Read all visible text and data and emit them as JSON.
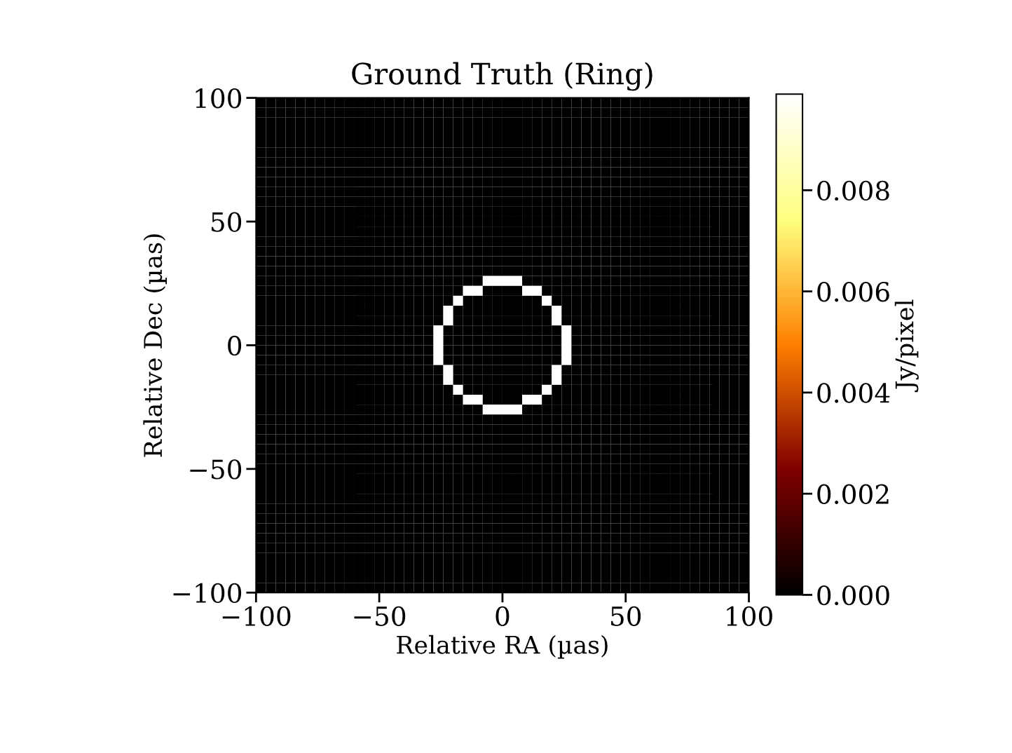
{
  "chart_data": {
    "type": "heatmap",
    "title": "Ground Truth (Ring)",
    "xlabel": "Relative RA (µas)",
    "ylabel": "Relative Dec (µas)",
    "clabel": "Jy/pixel",
    "xlim": [
      -100,
      100
    ],
    "ylim": [
      -100,
      100
    ],
    "xticks": [
      {
        "value": -100,
        "label": "−100"
      },
      {
        "value": -50,
        "label": "−50"
      },
      0,
      50,
      100
    ],
    "yticks": [
      {
        "value": -100,
        "label": "−100"
      },
      {
        "value": -50,
        "label": "−50"
      },
      0,
      50,
      100
    ],
    "clim": [
      0,
      0.0099
    ],
    "cticks": [
      {
        "value": 0,
        "label": "0.000"
      },
      {
        "value": 0.002,
        "label": "0.002"
      },
      {
        "value": 0.004,
        "label": "0.004"
      },
      {
        "value": 0.006,
        "label": "0.006"
      },
      {
        "value": 0.008,
        "label": "0.008"
      }
    ],
    "cells": [
      [
        0,
        0,
        0,
        0,
        0,
        0,
        0,
        0,
        0,
        0,
        0,
        0,
        0,
        0,
        0,
        0,
        0,
        0,
        0,
        0,
        0,
        0,
        0,
        0,
        0,
        0,
        0,
        0,
        0,
        0,
        0,
        0,
        0,
        0,
        0,
        0,
        0,
        0,
        0,
        0,
        0,
        0,
        0,
        0,
        0,
        0,
        0,
        0,
        0,
        0
      ],
      [
        0,
        0,
        0,
        0,
        0,
        0,
        0,
        0,
        0,
        0,
        0,
        0,
        0,
        0,
        0,
        0,
        0,
        0,
        0,
        0,
        0,
        0,
        0,
        0,
        0,
        0,
        0,
        0,
        0,
        0,
        0,
        0,
        0,
        0,
        0,
        0,
        0,
        0,
        0,
        0,
        0,
        0,
        0,
        0,
        0,
        0,
        0,
        0,
        0,
        0
      ],
      [
        0,
        0,
        0,
        0,
        0,
        0,
        0,
        0,
        0,
        0,
        0,
        0,
        0,
        0,
        0,
        0,
        0,
        0,
        0,
        0,
        0,
        0,
        0,
        0,
        0,
        0,
        0,
        0,
        0,
        0,
        0,
        0,
        0,
        0,
        0,
        0,
        0,
        0,
        0,
        0,
        0,
        0,
        0,
        0,
        0,
        0,
        0,
        0,
        0,
        0
      ],
      [
        0,
        0,
        0,
        0,
        0,
        0,
        0,
        0,
        0,
        0,
        0,
        0,
        0,
        0,
        0,
        0,
        0,
        0,
        0,
        0,
        0,
        0,
        0,
        0,
        0,
        0,
        0,
        0,
        0,
        0,
        0,
        0,
        0,
        0,
        0,
        0,
        0,
        0,
        0,
        0,
        0,
        0,
        0,
        0,
        0,
        0,
        0,
        0,
        0,
        0
      ],
      [
        0,
        0,
        0,
        0,
        0,
        0,
        0,
        0,
        0,
        0,
        0,
        0,
        0,
        0,
        0,
        0,
        0,
        0,
        0,
        0,
        0,
        0,
        0,
        0,
        0,
        0,
        0,
        0,
        0,
        0,
        0,
        0,
        0,
        0,
        0,
        0,
        0,
        0,
        0,
        0,
        0,
        0,
        0,
        0,
        0,
        0,
        0,
        0,
        0,
        0
      ],
      [
        0,
        0,
        0,
        0,
        0,
        0,
        0,
        0,
        0,
        0,
        0,
        0,
        0,
        0,
        0,
        0,
        0,
        0,
        0,
        0,
        0,
        0,
        0,
        0,
        0,
        0,
        0,
        0,
        0,
        0,
        0,
        0,
        0,
        0,
        0,
        0,
        0,
        0,
        0,
        0,
        0,
        0,
        0,
        0,
        0,
        0,
        0,
        0,
        0,
        0
      ],
      [
        0,
        0,
        0,
        0,
        0,
        0,
        0,
        0,
        0,
        0,
        0,
        0,
        0,
        0,
        0,
        0,
        0,
        0,
        0,
        0,
        0,
        0,
        0,
        0,
        0,
        0,
        0,
        0,
        0,
        0,
        0,
        0,
        0,
        0,
        0,
        0,
        0,
        0,
        0,
        0,
        0,
        0,
        0,
        0,
        0,
        0,
        0,
        0,
        0,
        0
      ],
      [
        0,
        0,
        0,
        0,
        0,
        0,
        0,
        0,
        0,
        0,
        0,
        0,
        0,
        0,
        0,
        0,
        0,
        0,
        0,
        0,
        0,
        0,
        0,
        0,
        0,
        0,
        0,
        0,
        0,
        0,
        0,
        0,
        0,
        0,
        0,
        0,
        0,
        0,
        0,
        0,
        0,
        0,
        0,
        0,
        0,
        0,
        0,
        0,
        0,
        0
      ],
      [
        0,
        0,
        0,
        0,
        0,
        0,
        0,
        0,
        0,
        0,
        0,
        0,
        0,
        0,
        0,
        0,
        0,
        0,
        0,
        0,
        0,
        0,
        0,
        0,
        0,
        0,
        0,
        0,
        0,
        0,
        0,
        0,
        0,
        0,
        0,
        0,
        0,
        0,
        0,
        0,
        0,
        0,
        0,
        0,
        0,
        0,
        0,
        0,
        0,
        0
      ],
      [
        0,
        0,
        0,
        0,
        0,
        0,
        0,
        0,
        0,
        0,
        0,
        0,
        0,
        0,
        0,
        0,
        0,
        0,
        0,
        0,
        0,
        0,
        0,
        0,
        0,
        0,
        0,
        0,
        0,
        0,
        0,
        0,
        0,
        0,
        0,
        0,
        0,
        0,
        0,
        0,
        0,
        0,
        0,
        0,
        0,
        0,
        0,
        0,
        0,
        0
      ],
      [
        0,
        0,
        0,
        0,
        0,
        0,
        0,
        0,
        0,
        0,
        0,
        0,
        0,
        0,
        0,
        0,
        0,
        0,
        0,
        0,
        0,
        0,
        0,
        0,
        0,
        0,
        0,
        0,
        0,
        0,
        0,
        0,
        0,
        0,
        0,
        0,
        0,
        0,
        0,
        0,
        0,
        0,
        0,
        0,
        0,
        0,
        0,
        0,
        0,
        0
      ],
      [
        0,
        0,
        0,
        0,
        0,
        0,
        0,
        0,
        0,
        0,
        0,
        0,
        0,
        0,
        0,
        0,
        0,
        0,
        0,
        0,
        0,
        0,
        0,
        0,
        0,
        0,
        0,
        0,
        0,
        0,
        0,
        0,
        0,
        0,
        0,
        0,
        0,
        0,
        0,
        0,
        0,
        0,
        0,
        0,
        0,
        0,
        0,
        0,
        0,
        0
      ],
      [
        0,
        0,
        0,
        0,
        0,
        0,
        0,
        0,
        0,
        0,
        0,
        0,
        0,
        0,
        0,
        0,
        0,
        0,
        0,
        0,
        0,
        0,
        0,
        0,
        0,
        0,
        0,
        0,
        0,
        0,
        0,
        0,
        0,
        0,
        0,
        0,
        0,
        0,
        0,
        0,
        0,
        0,
        0,
        0,
        0,
        0,
        0,
        0,
        0,
        0
      ],
      [
        0,
        0,
        0,
        0,
        0,
        0,
        0,
        0,
        0,
        0,
        0,
        0,
        0,
        0,
        0,
        0,
        0,
        0,
        0,
        0,
        0,
        0,
        0,
        0,
        0,
        0,
        0,
        0,
        0,
        0,
        0,
        0,
        0,
        0,
        0,
        0,
        0,
        0,
        0,
        0,
        0,
        0,
        0,
        0,
        0,
        0,
        0,
        0,
        0,
        0
      ],
      [
        0,
        0,
        0,
        0,
        0,
        0,
        0,
        0,
        0,
        0,
        0,
        0,
        0,
        0,
        0,
        0,
        0,
        0,
        0,
        0,
        0,
        0,
        0,
        0,
        0,
        0,
        0,
        0,
        0,
        0,
        0,
        0,
        0,
        0,
        0,
        0,
        0,
        0,
        0,
        0,
        0,
        0,
        0,
        0,
        0,
        0,
        0,
        0,
        0,
        0
      ],
      [
        0,
        0,
        0,
        0,
        0,
        0,
        0,
        0,
        0,
        0,
        0,
        0,
        0,
        0,
        0,
        0,
        0,
        0,
        0,
        0,
        0,
        0,
        0,
        0,
        0,
        0,
        0,
        0,
        0,
        0,
        0,
        0,
        0,
        0,
        0,
        0,
        0,
        0,
        0,
        0,
        0,
        0,
        0,
        0,
        0,
        0,
        0,
        0,
        0,
        0
      ],
      [
        0,
        0,
        0,
        0,
        0,
        0,
        0,
        0,
        0,
        0,
        0,
        0,
        0,
        0,
        0,
        0,
        0,
        0,
        0,
        0,
        0,
        0,
        0,
        0,
        0,
        0,
        0,
        0,
        0,
        0,
        0,
        0,
        0,
        0,
        0,
        0,
        0,
        0,
        0,
        0,
        0,
        0,
        0,
        0,
        0,
        0,
        0,
        0,
        0,
        0
      ],
      [
        0,
        0,
        0,
        0,
        0,
        0,
        0,
        0,
        0,
        0,
        0,
        0,
        0,
        0,
        0,
        0,
        0,
        0,
        0,
        0,
        0,
        0,
        0,
        0,
        0,
        0,
        0,
        0,
        0,
        0,
        0,
        0,
        0,
        0,
        0,
        0,
        0,
        0,
        0,
        0,
        0,
        0,
        0,
        0,
        0,
        0,
        0,
        0,
        0,
        0
      ],
      [
        0,
        0,
        0,
        0,
        0,
        0,
        0,
        0,
        0,
        0,
        0,
        0,
        0,
        0,
        0,
        0,
        0,
        0,
        0,
        0,
        0,
        0,
        0,
        0.0099,
        0.0099,
        0.0099,
        0.0099,
        0,
        0,
        0,
        0,
        0,
        0,
        0,
        0,
        0,
        0,
        0,
        0,
        0,
        0,
        0,
        0,
        0,
        0,
        0,
        0,
        0,
        0,
        0
      ],
      [
        0,
        0,
        0,
        0,
        0,
        0,
        0,
        0,
        0,
        0,
        0,
        0,
        0,
        0,
        0,
        0,
        0,
        0,
        0,
        0,
        0,
        0.0099,
        0.0099,
        0,
        0,
        0,
        0,
        0.0099,
        0.0099,
        0,
        0,
        0,
        0,
        0,
        0,
        0,
        0,
        0,
        0,
        0,
        0,
        0,
        0,
        0,
        0,
        0,
        0,
        0,
        0,
        0
      ],
      [
        0,
        0,
        0,
        0,
        0,
        0,
        0,
        0,
        0,
        0,
        0,
        0,
        0,
        0,
        0,
        0,
        0,
        0,
        0,
        0,
        0.0099,
        0,
        0,
        0,
        0,
        0,
        0,
        0,
        0,
        0.0099,
        0,
        0,
        0,
        0,
        0,
        0,
        0,
        0,
        0,
        0,
        0,
        0,
        0,
        0,
        0,
        0,
        0,
        0,
        0,
        0
      ],
      [
        0,
        0,
        0,
        0,
        0,
        0,
        0,
        0,
        0,
        0,
        0,
        0,
        0,
        0,
        0,
        0,
        0,
        0,
        0,
        0.0099,
        0,
        0,
        0,
        0,
        0,
        0,
        0,
        0,
        0,
        0,
        0.0099,
        0,
        0,
        0,
        0,
        0,
        0,
        0,
        0,
        0,
        0,
        0,
        0,
        0,
        0,
        0,
        0,
        0,
        0,
        0
      ],
      [
        0,
        0,
        0,
        0,
        0,
        0,
        0,
        0,
        0,
        0,
        0,
        0,
        0,
        0,
        0,
        0,
        0,
        0,
        0,
        0.0099,
        0,
        0,
        0,
        0,
        0,
        0,
        0,
        0,
        0,
        0,
        0.0099,
        0,
        0,
        0,
        0,
        0,
        0,
        0,
        0,
        0,
        0,
        0,
        0,
        0,
        0,
        0,
        0,
        0,
        0,
        0
      ],
      [
        0,
        0,
        0,
        0,
        0,
        0,
        0,
        0,
        0,
        0,
        0,
        0,
        0,
        0,
        0,
        0,
        0,
        0,
        0.0099,
        0,
        0,
        0,
        0,
        0,
        0,
        0,
        0,
        0,
        0,
        0,
        0,
        0.0099,
        0,
        0,
        0,
        0,
        0,
        0,
        0,
        0,
        0,
        0,
        0,
        0,
        0,
        0,
        0,
        0,
        0,
        0
      ],
      [
        0,
        0,
        0,
        0,
        0,
        0,
        0,
        0,
        0,
        0,
        0,
        0,
        0,
        0,
        0,
        0,
        0,
        0,
        0.0099,
        0,
        0,
        0,
        0,
        0,
        0,
        0,
        0,
        0,
        0,
        0,
        0,
        0.0099,
        0,
        0,
        0,
        0,
        0,
        0,
        0,
        0,
        0,
        0,
        0,
        0,
        0,
        0,
        0,
        0,
        0,
        0
      ],
      [
        0,
        0,
        0,
        0,
        0,
        0,
        0,
        0,
        0,
        0,
        0,
        0,
        0,
        0,
        0,
        0,
        0,
        0,
        0.0099,
        0,
        0,
        0,
        0,
        0,
        0,
        0,
        0,
        0,
        0,
        0,
        0,
        0.0099,
        0,
        0,
        0,
        0,
        0,
        0,
        0,
        0,
        0,
        0,
        0,
        0,
        0,
        0,
        0,
        0,
        0,
        0
      ],
      [
        0,
        0,
        0,
        0,
        0,
        0,
        0,
        0,
        0,
        0,
        0,
        0,
        0,
        0,
        0,
        0,
        0,
        0,
        0.0099,
        0,
        0,
        0,
        0,
        0,
        0,
        0,
        0,
        0,
        0,
        0,
        0,
        0.0099,
        0,
        0,
        0,
        0,
        0,
        0,
        0,
        0,
        0,
        0,
        0,
        0,
        0,
        0,
        0,
        0,
        0,
        0
      ],
      [
        0,
        0,
        0,
        0,
        0,
        0,
        0,
        0,
        0,
        0,
        0,
        0,
        0,
        0,
        0,
        0,
        0,
        0,
        0,
        0.0099,
        0,
        0,
        0,
        0,
        0,
        0,
        0,
        0,
        0,
        0,
        0.0099,
        0,
        0,
        0,
        0,
        0,
        0,
        0,
        0,
        0,
        0,
        0,
        0,
        0,
        0,
        0,
        0,
        0,
        0,
        0
      ],
      [
        0,
        0,
        0,
        0,
        0,
        0,
        0,
        0,
        0,
        0,
        0,
        0,
        0,
        0,
        0,
        0,
        0,
        0,
        0,
        0.0099,
        0,
        0,
        0,
        0,
        0,
        0,
        0,
        0,
        0,
        0,
        0.0099,
        0,
        0,
        0,
        0,
        0,
        0,
        0,
        0,
        0,
        0,
        0,
        0,
        0,
        0,
        0,
        0,
        0,
        0,
        0
      ],
      [
        0,
        0,
        0,
        0,
        0,
        0,
        0,
        0,
        0,
        0,
        0,
        0,
        0,
        0,
        0,
        0,
        0,
        0,
        0,
        0,
        0.0099,
        0,
        0,
        0,
        0,
        0,
        0,
        0,
        0,
        0.0099,
        0,
        0,
        0,
        0,
        0,
        0,
        0,
        0,
        0,
        0,
        0,
        0,
        0,
        0,
        0,
        0,
        0,
        0,
        0,
        0
      ],
      [
        0,
        0,
        0,
        0,
        0,
        0,
        0,
        0,
        0,
        0,
        0,
        0,
        0,
        0,
        0,
        0,
        0,
        0,
        0,
        0,
        0,
        0.0099,
        0.0099,
        0,
        0,
        0,
        0,
        0.0099,
        0.0099,
        0,
        0,
        0,
        0,
        0,
        0,
        0,
        0,
        0,
        0,
        0,
        0,
        0,
        0,
        0,
        0,
        0,
        0,
        0,
        0,
        0
      ],
      [
        0,
        0,
        0,
        0,
        0,
        0,
        0,
        0,
        0,
        0,
        0,
        0,
        0,
        0,
        0,
        0,
        0,
        0,
        0,
        0,
        0,
        0,
        0,
        0.0099,
        0.0099,
        0.0099,
        0.0099,
        0,
        0,
        0,
        0,
        0,
        0,
        0,
        0,
        0,
        0,
        0,
        0,
        0,
        0,
        0,
        0,
        0,
        0,
        0,
        0,
        0,
        0,
        0
      ],
      [
        0,
        0,
        0,
        0,
        0,
        0,
        0,
        0,
        0,
        0,
        0,
        0,
        0,
        0,
        0,
        0,
        0,
        0,
        0,
        0,
        0,
        0,
        0,
        0,
        0,
        0,
        0,
        0,
        0,
        0,
        0,
        0,
        0,
        0,
        0,
        0,
        0,
        0,
        0,
        0,
        0,
        0,
        0,
        0,
        0,
        0,
        0,
        0,
        0,
        0
      ],
      [
        0,
        0,
        0,
        0,
        0,
        0,
        0,
        0,
        0,
        0,
        0,
        0,
        0,
        0,
        0,
        0,
        0,
        0,
        0,
        0,
        0,
        0,
        0,
        0,
        0,
        0,
        0,
        0,
        0,
        0,
        0,
        0,
        0,
        0,
        0,
        0,
        0,
        0,
        0,
        0,
        0,
        0,
        0,
        0,
        0,
        0,
        0,
        0,
        0,
        0
      ],
      [
        0,
        0,
        0,
        0,
        0,
        0,
        0,
        0,
        0,
        0,
        0,
        0,
        0,
        0,
        0,
        0,
        0,
        0,
        0,
        0,
        0,
        0,
        0,
        0,
        0,
        0,
        0,
        0,
        0,
        0,
        0,
        0,
        0,
        0,
        0,
        0,
        0,
        0,
        0,
        0,
        0,
        0,
        0,
        0,
        0,
        0,
        0,
        0,
        0,
        0
      ],
      [
        0,
        0,
        0,
        0,
        0,
        0,
        0,
        0,
        0,
        0,
        0,
        0,
        0,
        0,
        0,
        0,
        0,
        0,
        0,
        0,
        0,
        0,
        0,
        0,
        0,
        0,
        0,
        0,
        0,
        0,
        0,
        0,
        0,
        0,
        0,
        0,
        0,
        0,
        0,
        0,
        0,
        0,
        0,
        0,
        0,
        0,
        0,
        0,
        0,
        0
      ],
      [
        0,
        0,
        0,
        0,
        0,
        0,
        0,
        0,
        0,
        0,
        0,
        0,
        0,
        0,
        0,
        0,
        0,
        0,
        0,
        0,
        0,
        0,
        0,
        0,
        0,
        0,
        0,
        0,
        0,
        0,
        0,
        0,
        0,
        0,
        0,
        0,
        0,
        0,
        0,
        0,
        0,
        0,
        0,
        0,
        0,
        0,
        0,
        0,
        0,
        0
      ],
      [
        0,
        0,
        0,
        0,
        0,
        0,
        0,
        0,
        0,
        0,
        0,
        0,
        0,
        0,
        0,
        0,
        0,
        0,
        0,
        0,
        0,
        0,
        0,
        0,
        0,
        0,
        0,
        0,
        0,
        0,
        0,
        0,
        0,
        0,
        0,
        0,
        0,
        0,
        0,
        0,
        0,
        0,
        0,
        0,
        0,
        0,
        0,
        0,
        0,
        0
      ],
      [
        0,
        0,
        0,
        0,
        0,
        0,
        0,
        0,
        0,
        0,
        0,
        0,
        0,
        0,
        0,
        0,
        0,
        0,
        0,
        0,
        0,
        0,
        0,
        0,
        0,
        0,
        0,
        0,
        0,
        0,
        0,
        0,
        0,
        0,
        0,
        0,
        0,
        0,
        0,
        0,
        0,
        0,
        0,
        0,
        0,
        0,
        0,
        0,
        0,
        0
      ],
      [
        0,
        0,
        0,
        0,
        0,
        0,
        0,
        0,
        0,
        0,
        0,
        0,
        0,
        0,
        0,
        0,
        0,
        0,
        0,
        0,
        0,
        0,
        0,
        0,
        0,
        0,
        0,
        0,
        0,
        0,
        0,
        0,
        0,
        0,
        0,
        0,
        0,
        0,
        0,
        0,
        0,
        0,
        0,
        0,
        0,
        0,
        0,
        0,
        0,
        0
      ],
      [
        0,
        0,
        0,
        0,
        0,
        0,
        0,
        0,
        0,
        0,
        0,
        0,
        0,
        0,
        0,
        0,
        0,
        0,
        0,
        0,
        0,
        0,
        0,
        0,
        0,
        0,
        0,
        0,
        0,
        0,
        0,
        0,
        0,
        0,
        0,
        0,
        0,
        0,
        0,
        0,
        0,
        0,
        0,
        0,
        0,
        0,
        0,
        0,
        0,
        0
      ],
      [
        0,
        0,
        0,
        0,
        0,
        0,
        0,
        0,
        0,
        0,
        0,
        0,
        0,
        0,
        0,
        0,
        0,
        0,
        0,
        0,
        0,
        0,
        0,
        0,
        0,
        0,
        0,
        0,
        0,
        0,
        0,
        0,
        0,
        0,
        0,
        0,
        0,
        0,
        0,
        0,
        0,
        0,
        0,
        0,
        0,
        0,
        0,
        0,
        0,
        0
      ],
      [
        0,
        0,
        0,
        0,
        0,
        0,
        0,
        0,
        0,
        0,
        0,
        0,
        0,
        0,
        0,
        0,
        0,
        0,
        0,
        0,
        0,
        0,
        0,
        0,
        0,
        0,
        0,
        0,
        0,
        0,
        0,
        0,
        0,
        0,
        0,
        0,
        0,
        0,
        0,
        0,
        0,
        0,
        0,
        0,
        0,
        0,
        0,
        0,
        0,
        0
      ],
      [
        0,
        0,
        0,
        0,
        0,
        0,
        0,
        0,
        0,
        0,
        0,
        0,
        0,
        0,
        0,
        0,
        0,
        0,
        0,
        0,
        0,
        0,
        0,
        0,
        0,
        0,
        0,
        0,
        0,
        0,
        0,
        0,
        0,
        0,
        0,
        0,
        0,
        0,
        0,
        0,
        0,
        0,
        0,
        0,
        0,
        0,
        0,
        0,
        0,
        0
      ],
      [
        0,
        0,
        0,
        0,
        0,
        0,
        0,
        0,
        0,
        0,
        0,
        0,
        0,
        0,
        0,
        0,
        0,
        0,
        0,
        0,
        0,
        0,
        0,
        0,
        0,
        0,
        0,
        0,
        0,
        0,
        0,
        0,
        0,
        0,
        0,
        0,
        0,
        0,
        0,
        0,
        0,
        0,
        0,
        0,
        0,
        0,
        0,
        0,
        0,
        0
      ],
      [
        0,
        0,
        0,
        0,
        0,
        0,
        0,
        0,
        0,
        0,
        0,
        0,
        0,
        0,
        0,
        0,
        0,
        0,
        0,
        0,
        0,
        0,
        0,
        0,
        0,
        0,
        0,
        0,
        0,
        0,
        0,
        0,
        0,
        0,
        0,
        0,
        0,
        0,
        0,
        0,
        0,
        0,
        0,
        0,
        0,
        0,
        0,
        0,
        0,
        0
      ],
      [
        0,
        0,
        0,
        0,
        0,
        0,
        0,
        0,
        0,
        0,
        0,
        0,
        0,
        0,
        0,
        0,
        0,
        0,
        0,
        0,
        0,
        0,
        0,
        0,
        0,
        0,
        0,
        0,
        0,
        0,
        0,
        0,
        0,
        0,
        0,
        0,
        0,
        0,
        0,
        0,
        0,
        0,
        0,
        0,
        0,
        0,
        0,
        0,
        0,
        0
      ],
      [
        0,
        0,
        0,
        0,
        0,
        0,
        0,
        0,
        0,
        0,
        0,
        0,
        0,
        0,
        0,
        0,
        0,
        0,
        0,
        0,
        0,
        0,
        0,
        0,
        0,
        0,
        0,
        0,
        0,
        0,
        0,
        0,
        0,
        0,
        0,
        0,
        0,
        0,
        0,
        0,
        0,
        0,
        0,
        0,
        0,
        0,
        0,
        0,
        0,
        0
      ],
      [
        0,
        0,
        0,
        0,
        0,
        0,
        0,
        0,
        0,
        0,
        0,
        0,
        0,
        0,
        0,
        0,
        0,
        0,
        0,
        0,
        0,
        0,
        0,
        0,
        0,
        0,
        0,
        0,
        0,
        0,
        0,
        0,
        0,
        0,
        0,
        0,
        0,
        0,
        0,
        0,
        0,
        0,
        0,
        0,
        0,
        0,
        0,
        0,
        0,
        0
      ],
      [
        0,
        0,
        0,
        0,
        0,
        0,
        0,
        0,
        0,
        0,
        0,
        0,
        0,
        0,
        0,
        0,
        0,
        0,
        0,
        0,
        0,
        0,
        0,
        0,
        0,
        0,
        0,
        0,
        0,
        0,
        0,
        0,
        0,
        0,
        0,
        0,
        0,
        0,
        0,
        0,
        0,
        0,
        0,
        0,
        0,
        0,
        0,
        0,
        0,
        0
      ]
    ]
  }
}
